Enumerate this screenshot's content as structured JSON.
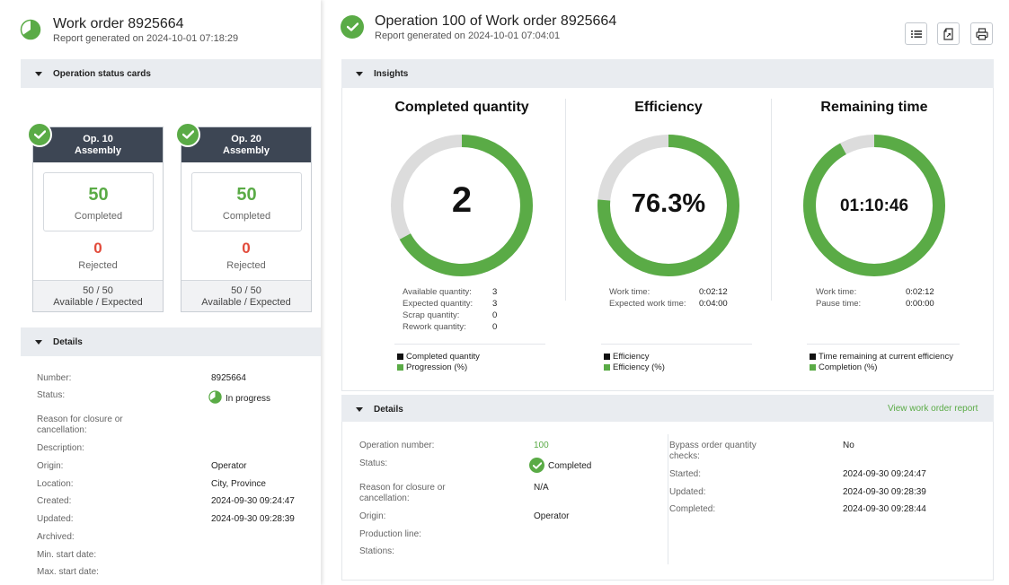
{
  "left": {
    "title": "Work order 8925664",
    "subtitle": "Report generated on 2024-10-01 07:18:29",
    "status_cards_section": "Operation status cards",
    "cards": [
      {
        "op": "Op. 10",
        "name": "Assembly",
        "completed": "50",
        "completed_label": "Completed",
        "rejected": "0",
        "rejected_label": "Rejected",
        "ratio": "50 / 50",
        "ratio_label": "Available / Expected"
      },
      {
        "op": "Op. 20",
        "name": "Assembly",
        "completed": "50",
        "completed_label": "Completed",
        "rejected": "0",
        "rejected_label": "Rejected",
        "ratio": "50 / 50",
        "ratio_label": "Available / Expected"
      }
    ],
    "details_section": "Details",
    "details": [
      {
        "label": "Number:",
        "value": "8925664"
      },
      {
        "label": "Status:",
        "value": "In progress"
      },
      {
        "label": "Reason for closure or cancellation:",
        "value": ""
      },
      {
        "label": "Description:",
        "value": ""
      },
      {
        "label": "Origin:",
        "value": "Operator"
      },
      {
        "label": "Location:",
        "value": "City, Province"
      },
      {
        "label": "Created:",
        "value": "2024-09-30 09:24:47"
      },
      {
        "label": "Updated:",
        "value": "2024-09-30 09:28:39"
      },
      {
        "label": "Archived:",
        "value": ""
      },
      {
        "label": "Min. start date:",
        "value": ""
      },
      {
        "label": "Max. start date:",
        "value": ""
      }
    ]
  },
  "right": {
    "title": "Operation 100 of Work order 8925664",
    "subtitle": "Report generated on 2024-10-01 07:04:01",
    "toolbar": {
      "list_icon": "list-icon",
      "export_icon": "export-icon",
      "print_icon": "print-icon"
    },
    "insights_section": "Insights",
    "insights": [
      {
        "title": "Completed quantity",
        "center": "2",
        "progress": 0.67,
        "stats": [
          {
            "label": "Available quantity:",
            "value": "3"
          },
          {
            "label": "Expected quantity:",
            "value": "3"
          },
          {
            "label": "Scrap quantity:",
            "value": "0"
          },
          {
            "label": "Rework quantity:",
            "value": "0"
          }
        ],
        "legend": [
          "Completed quantity",
          "Progression (%)"
        ]
      },
      {
        "title": "Efficiency",
        "center": "76.3%",
        "progress": 0.763,
        "stats": [
          {
            "label": "Work time:",
            "value": "0:02:12"
          },
          {
            "label": "Expected work time:",
            "value": "0:04:00"
          }
        ],
        "legend": [
          "Efficiency",
          "Efficiency (%)"
        ]
      },
      {
        "title": "Remaining time",
        "center": "01:10:46",
        "progress": 0.92,
        "stats": [
          {
            "label": "Work time:",
            "value": "0:02:12"
          },
          {
            "label": "Pause time:",
            "value": "0:00:00"
          }
        ],
        "legend": [
          "Time remaining at current efficiency",
          "Completion (%)"
        ]
      }
    ],
    "details_section": "Details",
    "view_report_link": "View work order report",
    "details_left": [
      {
        "label": "Operation number:",
        "value": "100"
      },
      {
        "label": "Status:",
        "value": "Completed"
      },
      {
        "label": "Reason for closure or cancellation:",
        "value": "N/A"
      },
      {
        "label": "Origin:",
        "value": "Operator"
      },
      {
        "label": "Production line:",
        "value": ""
      },
      {
        "label": "Stations:",
        "value": ""
      }
    ],
    "details_right": [
      {
        "label": "Bypass order quantity checks:",
        "value": "No"
      },
      {
        "label": "Started:",
        "value": "2024-09-30 09:24:47"
      },
      {
        "label": "Updated:",
        "value": "2024-09-30 09:28:39"
      },
      {
        "label": "Completed:",
        "value": "2024-09-30 09:28:44"
      }
    ]
  },
  "colors": {
    "green": "#5aab46",
    "red": "#e24b3b",
    "track": "#dcdcdc",
    "card_header": "#3d4654",
    "section_bar": "#e9ecf0"
  }
}
